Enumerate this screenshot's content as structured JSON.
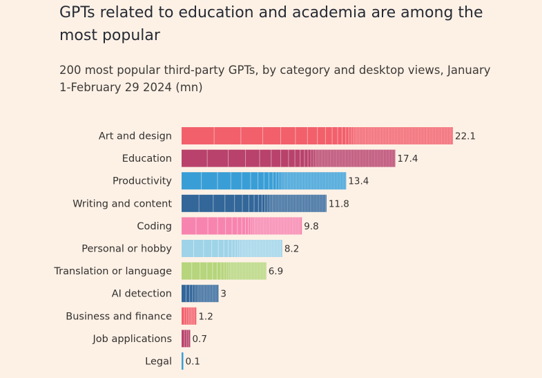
{
  "title": "GPTs related to education and academia are among the most popular",
  "subtitle": "200 most popular third-party GPTs, by category and desktop views, January 1-February 29 2024 (mn)",
  "chart_data": {
    "type": "bar",
    "orientation": "horizontal",
    "stacked_segments": true,
    "title": "GPTs related to education and academia are among the most popular",
    "subtitle": "200 most popular third-party GPTs, by category and desktop views, January 1-February 29 2024 (mn)",
    "xlabel": "",
    "ylabel": "",
    "xlim": [
      0,
      22.1
    ],
    "grid": false,
    "categories": [
      "Art and design",
      "Education",
      "Productivity",
      "Writing and content",
      "Coding",
      "Personal or hobby",
      "Translation or language",
      "AI detection",
      "Business and finance",
      "Job applications",
      "Legal"
    ],
    "values": [
      22.1,
      17.4,
      13.4,
      11.8,
      9.8,
      8.2,
      6.9,
      3,
      1.2,
      0.7,
      0.1
    ],
    "value_labels": [
      "22.1",
      "17.4",
      "13.4",
      "11.8",
      "9.8",
      "8.2",
      "6.9",
      "3",
      "1.2",
      "0.7",
      "0.1"
    ],
    "colors": [
      "#f2606b",
      "#b8426b",
      "#3a9ed6",
      "#336699",
      "#f784ae",
      "#9fd3e8",
      "#b6d57c",
      "#336699",
      "#f2606b",
      "#b8426b",
      "#3a9ed6"
    ]
  }
}
